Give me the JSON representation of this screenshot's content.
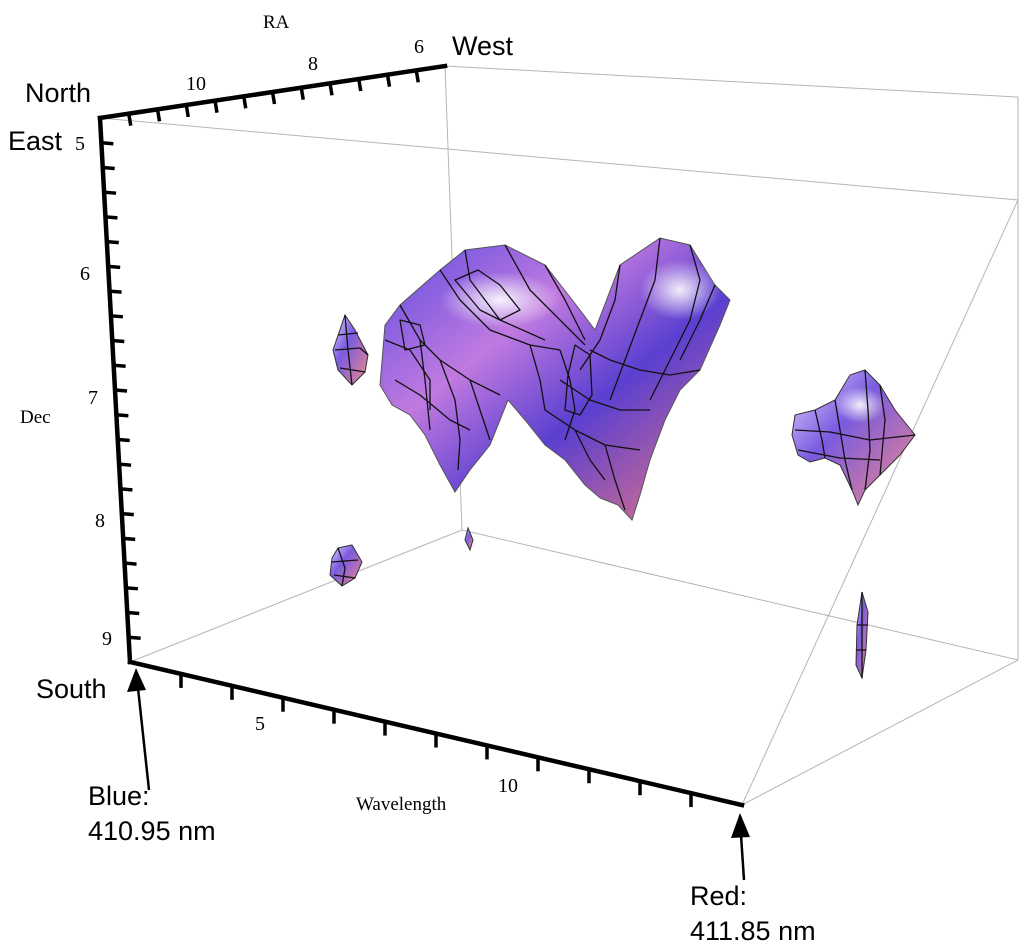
{
  "chart_data": {
    "type": "isosurface-3d",
    "axes": {
      "ra": {
        "label": "RA",
        "ticks": [
          6,
          8,
          10
        ]
      },
      "dec": {
        "label": "Dec",
        "ticks": [
          5,
          6,
          7,
          8,
          9
        ]
      },
      "wavelength": {
        "label": "Wavelength",
        "ticks": [
          5,
          10
        ]
      }
    },
    "annotations": {
      "north": "North",
      "east": "East",
      "west": "West",
      "south": "South",
      "blue_line1": "Blue:",
      "blue_line2": "410.95 nm",
      "red_line1": "Red:",
      "red_line2": "411.85 nm"
    },
    "surface_colors": {
      "blue": "#4a3fd6",
      "magenta": "#b85ad0",
      "pink": "#f08a8a",
      "highlight": "#f4f0ff"
    }
  }
}
